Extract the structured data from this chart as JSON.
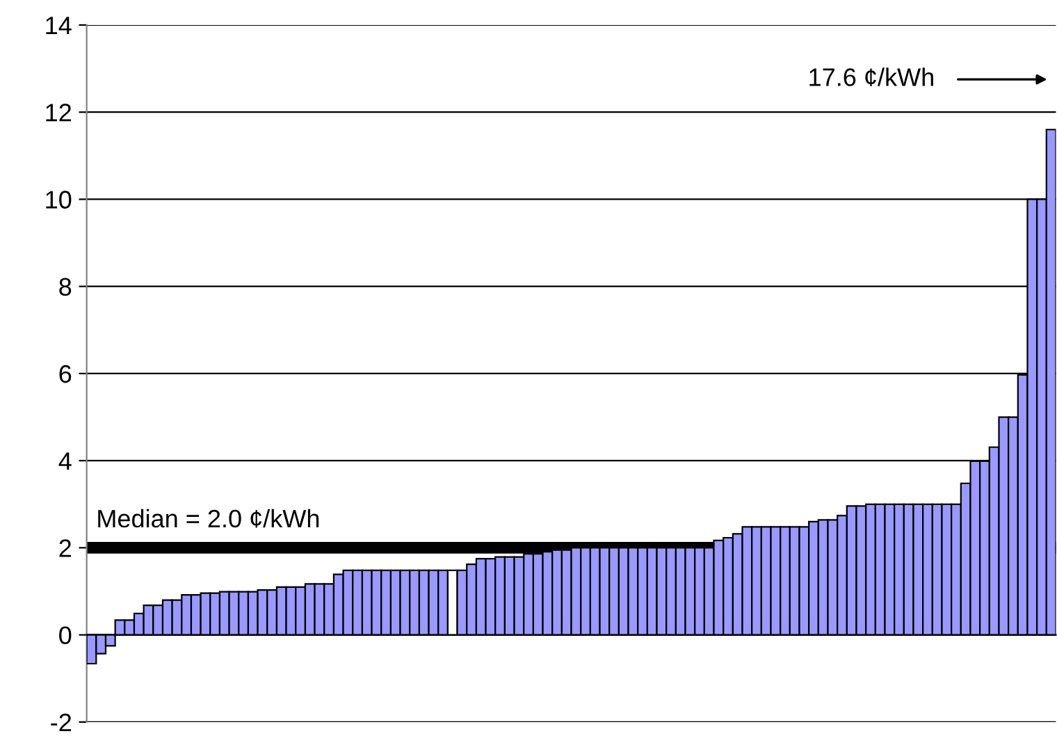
{
  "chart_data": {
    "type": "bar",
    "categories": [
      null,
      null,
      null,
      null,
      null,
      null,
      null,
      null,
      null,
      null,
      null,
      null,
      null,
      null,
      null,
      null,
      null,
      null,
      null,
      null,
      null,
      null,
      null,
      null,
      null,
      null,
      null,
      null,
      null,
      null,
      null,
      null,
      null,
      null,
      null,
      null,
      null,
      null,
      null,
      null,
      null,
      null,
      null,
      null,
      null,
      null,
      null,
      null,
      null,
      null,
      null,
      null,
      null,
      null,
      null,
      null,
      null,
      null,
      null,
      null,
      null,
      null,
      null,
      null,
      null,
      null,
      null,
      null,
      null,
      null,
      null,
      null,
      null,
      null,
      null,
      null,
      null,
      null,
      null,
      null,
      null,
      null,
      null,
      null,
      null,
      null,
      null,
      null,
      null,
      null,
      null,
      null,
      null,
      null,
      null,
      null,
      null,
      null,
      null,
      null,
      null,
      null
    ],
    "values": [
      -0.66,
      -0.43,
      -0.25,
      0.34,
      0.34,
      0.49,
      0.68,
      0.68,
      0.8,
      0.8,
      0.92,
      0.92,
      0.96,
      0.96,
      0.99,
      0.99,
      0.99,
      0.99,
      1.03,
      1.03,
      1.1,
      1.1,
      1.1,
      1.17,
      1.17,
      1.17,
      1.39,
      1.48,
      1.48,
      1.48,
      1.48,
      1.48,
      1.48,
      1.48,
      1.48,
      1.48,
      1.48,
      1.48,
      1.48,
      1.48,
      1.62,
      1.75,
      1.75,
      1.79,
      1.79,
      1.79,
      1.86,
      1.86,
      1.91,
      1.95,
      1.95,
      2.0,
      2.0,
      2.0,
      2.0,
      2.0,
      2.0,
      2.0,
      2.0,
      2.0,
      2.0,
      2.0,
      2.0,
      2.0,
      2.0,
      2.0,
      2.17,
      2.23,
      2.32,
      2.48,
      2.48,
      2.48,
      2.48,
      2.48,
      2.48,
      2.48,
      2.6,
      2.64,
      2.64,
      2.74,
      2.96,
      2.96,
      3.0,
      3.0,
      3.0,
      3.0,
      3.0,
      3.0,
      3.0,
      3.0,
      3.0,
      3.0,
      3.48,
      3.99,
      3.99,
      4.31,
      5.0,
      5.0,
      5.97,
      10.0,
      10.0,
      11.6
    ],
    "colors": [
      "#9999ff",
      "#9999ff",
      "#9999ff",
      "#9999ff",
      "#9999ff",
      "#9999ff",
      "#9999ff",
      "#9999ff",
      "#9999ff",
      "#9999ff",
      "#9999ff",
      "#9999ff",
      "#9999ff",
      "#9999ff",
      "#9999ff",
      "#9999ff",
      "#9999ff",
      "#9999ff",
      "#9999ff",
      "#9999ff",
      "#9999ff",
      "#9999ff",
      "#9999ff",
      "#9999ff",
      "#9999ff",
      "#9999ff",
      "#9999ff",
      "#9999ff",
      "#9999ff",
      "#9999ff",
      "#9999ff",
      "#9999ff",
      "#9999ff",
      "#9999ff",
      "#9999ff",
      "#9999ff",
      "#9999ff",
      "#9999ff",
      "#ffffff",
      "#9999ff",
      "#9999ff",
      "#9999ff",
      "#9999ff",
      "#9999ff",
      "#9999ff",
      "#9999ff",
      "#9999ff",
      "#9999ff",
      "#9999ff",
      "#9999ff",
      "#9999ff",
      "#9999ff",
      "#9999ff",
      "#9999ff",
      "#9999ff",
      "#9999ff",
      "#9999ff",
      "#9999ff",
      "#9999ff",
      "#9999ff",
      "#9999ff",
      "#9999ff",
      "#9999ff",
      "#9999ff",
      "#9999ff",
      "#9999ff",
      "#9999ff",
      "#9999ff",
      "#9999ff",
      "#9999ff",
      "#9999ff",
      "#9999ff",
      "#9999ff",
      "#9999ff",
      "#9999ff",
      "#9999ff",
      "#9999ff",
      "#9999ff",
      "#9999ff",
      "#9999ff",
      "#9999ff",
      "#9999ff",
      "#9999ff",
      "#9999ff",
      "#9999ff",
      "#9999ff",
      "#9999ff",
      "#9999ff",
      "#9999ff",
      "#9999ff",
      "#9999ff",
      "#9999ff",
      "#9999ff",
      "#9999ff",
      "#9999ff",
      "#9999ff",
      "#9999ff",
      "#9999ff",
      "#9999ff",
      "#9999ff",
      "#9999ff",
      "#9999ff"
    ],
    "ylim": [
      -2,
      14
    ],
    "yticks": [
      -2,
      0,
      2,
      4,
      6,
      8,
      10,
      12,
      14
    ],
    "grid": "y",
    "ref_lines": [
      {
        "axis": "y",
        "value": 2.0,
        "label": "Median = 2.0 ¢/kWh",
        "color": "#000000"
      }
    ],
    "annotations": [
      "17.6 ¢/kWh"
    ]
  }
}
